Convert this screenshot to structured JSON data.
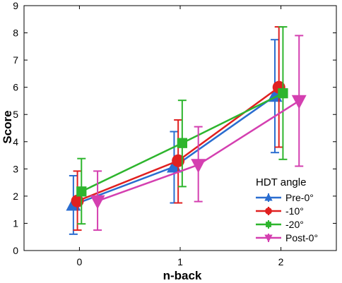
{
  "chart_data": {
    "type": "line",
    "xlabel": "n-back",
    "ylabel": "Score",
    "x_ticks": [
      "0",
      "1",
      "2"
    ],
    "y_ticks": [
      "0",
      "1",
      "2",
      "3",
      "4",
      "5",
      "6",
      "7",
      "8",
      "9"
    ],
    "xlim": [
      -0.55,
      2.55
    ],
    "ylim": [
      0,
      9
    ],
    "grid": false,
    "legend": {
      "title": "HDT angle",
      "placement": "bottom-right"
    },
    "series": [
      {
        "name": "Pre-0°",
        "color": "#2a6dd0",
        "marker": "triangle-up",
        "x": [
          -0.06,
          0.94,
          1.94
        ],
        "y": [
          1.68,
          3.08,
          5.68
        ],
        "err_low": [
          0.6,
          1.75,
          3.6
        ],
        "err_high": [
          2.75,
          4.37,
          7.75
        ]
      },
      {
        "name": "-10°",
        "color": "#e02020",
        "marker": "circle",
        "x": [
          -0.02,
          0.98,
          1.98
        ],
        "y": [
          1.82,
          3.3,
          6.0
        ],
        "err_low": [
          0.75,
          1.75,
          3.8
        ],
        "err_high": [
          2.92,
          4.8,
          8.22
        ]
      },
      {
        "name": "-20°",
        "color": "#2db52d",
        "marker": "square",
        "x": [
          0.02,
          1.02,
          2.02
        ],
        "y": [
          2.17,
          3.95,
          5.78
        ],
        "err_low": [
          0.98,
          2.35,
          3.35
        ],
        "err_high": [
          3.38,
          5.52,
          8.22
        ]
      },
      {
        "name": "Post-0°",
        "color": "#d43fb0",
        "marker": "triangle-down",
        "x": [
          0.18,
          1.18,
          2.18
        ],
        "y": [
          1.82,
          3.15,
          5.5
        ],
        "err_low": [
          0.75,
          1.8,
          3.1
        ],
        "err_high": [
          2.92,
          4.55,
          7.9
        ]
      }
    ]
  }
}
